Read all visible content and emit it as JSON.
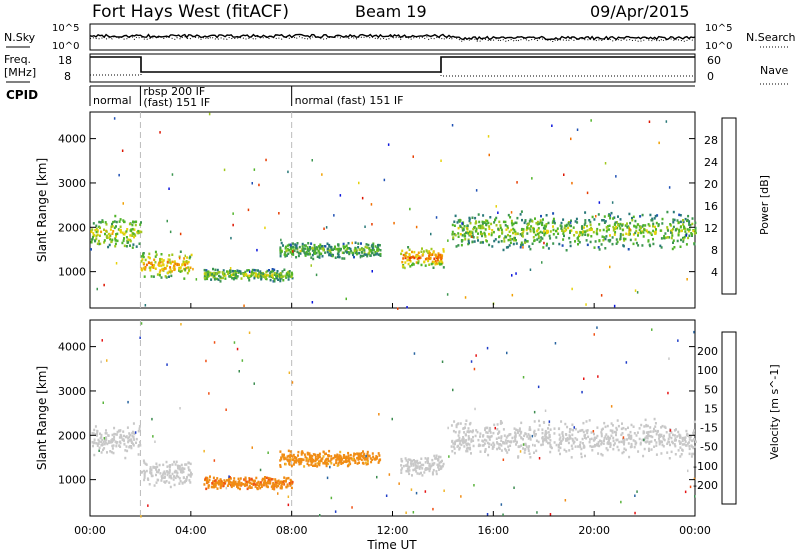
{
  "header": {
    "station": "Fort Hays West (fitACF)",
    "beam": "Beam 19",
    "date": "09/Apr/2015"
  },
  "noise_panel": {
    "left_label": "N.Sky",
    "right_label": "N.Search",
    "tick_hi": "10^5",
    "tick_lo": "10^0"
  },
  "freq_panel": {
    "left_label_1": "Freq.",
    "left_label_2": "[MHz]",
    "right_label": "Nave",
    "left_ticks": [
      "18",
      "8"
    ],
    "right_ticks": [
      "60",
      "0"
    ]
  },
  "cpid": {
    "label": "CPID",
    "segments": [
      {
        "start_hour": 0.0,
        "lines": [
          "normal"
        ]
      },
      {
        "start_hour": 2.0,
        "lines": [
          "rbsp 200 IF",
          "(fast) 151 IF"
        ]
      },
      {
        "start_hour": 8.0,
        "lines": [
          "normal (fast) 151 IF"
        ]
      }
    ]
  },
  "chart_data": [
    {
      "type": "heatmap",
      "panel": "power",
      "ylabel": "Slant Range [km]",
      "yticks": [
        1000,
        2000,
        3000,
        4000
      ],
      "ylim": [
        180,
        4600
      ],
      "colorbar_label": "Power [dB]",
      "colorbar_ticks": [
        "4",
        "8",
        "12",
        "16",
        "20",
        "24",
        "28"
      ],
      "colors": [
        "#0a14dc",
        "#1e50b4",
        "#287878",
        "#3c9650",
        "#50b428",
        "#a0c81e",
        "#e6d20a",
        "#f0a000",
        "#f06e00",
        "#e63c00",
        "#dc1400"
      ],
      "echo_regions": [
        {
          "hours": [
            0.0,
            2.0
          ],
          "range_km": [
            1500,
            2300
          ],
          "power_db": 14
        },
        {
          "hours": [
            2.0,
            4.0
          ],
          "range_km": [
            850,
            1500
          ],
          "power_db": 18
        },
        {
          "hours": [
            4.5,
            8.0
          ],
          "range_km": [
            800,
            1100
          ],
          "power_db": 12
        },
        {
          "hours": [
            7.5,
            11.5
          ],
          "range_km": [
            1300,
            1700
          ],
          "power_db": 10
        },
        {
          "hours": [
            12.3,
            14.0
          ],
          "range_km": [
            1100,
            1600
          ],
          "power_db": 20
        },
        {
          "hours": [
            14.3,
            24.0
          ],
          "range_km": [
            1500,
            2400
          ],
          "power_db": 12
        }
      ]
    },
    {
      "type": "heatmap",
      "panel": "velocity",
      "ylabel": "Slant Range [km]",
      "xlabel": "Time UT",
      "xticks": [
        "00:00",
        "04:00",
        "08:00",
        "12:00",
        "16:00",
        "20:00",
        "00:00"
      ],
      "yticks": [
        1000,
        2000,
        3000,
        4000
      ],
      "ylim": [
        180,
        4600
      ],
      "colorbar_label": "Velocity [m s^-1]",
      "colorbar_ticks": [
        "200",
        "100",
        "50",
        "15",
        "-15",
        "-50",
        "-100",
        "-200"
      ],
      "colors": [
        "#1e3cc8",
        "#2864a0",
        "#3c8c50",
        "#5ab43c",
        "#c8c8c8",
        "#f0b428",
        "#f08c14",
        "#f05014",
        "#e61414"
      ],
      "echo_regions": [
        {
          "hours": [
            0.0,
            2.0
          ],
          "range_km": [
            1500,
            2300
          ],
          "velocity": 0
        },
        {
          "hours": [
            2.0,
            4.0
          ],
          "range_km": [
            850,
            1500
          ],
          "velocity": 0
        },
        {
          "hours": [
            4.5,
            8.0
          ],
          "range_km": [
            800,
            1100
          ],
          "velocity": -60
        },
        {
          "hours": [
            7.5,
            11.5
          ],
          "range_km": [
            1300,
            1700
          ],
          "velocity": -50
        },
        {
          "hours": [
            12.3,
            14.0
          ],
          "range_km": [
            1100,
            1600
          ],
          "velocity": 0
        },
        {
          "hours": [
            14.3,
            24.0
          ],
          "range_km": [
            1500,
            2400
          ],
          "velocity": 0
        }
      ]
    }
  ]
}
